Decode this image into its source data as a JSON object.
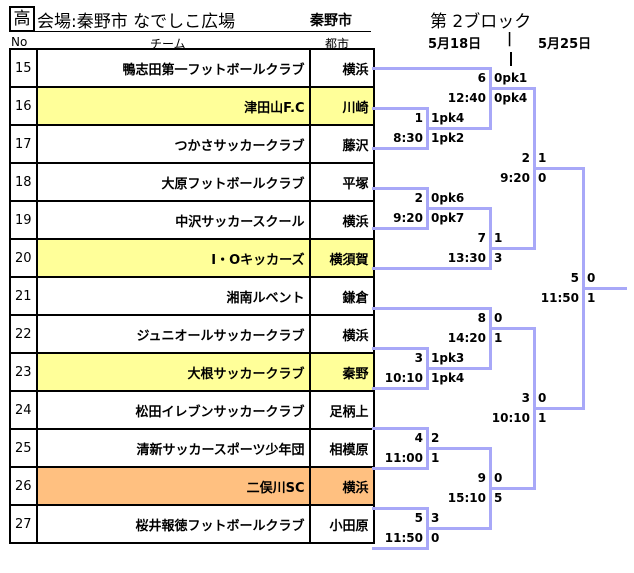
{
  "header": {
    "category": "高",
    "venue": "会場:秦野市 なでしこ広場",
    "city": "秦野市",
    "block": "第 2ブロック",
    "date1": "5月18日",
    "date2": "5月25日",
    "separator": "|"
  },
  "columns": {
    "no": "No",
    "team": "チーム",
    "city": "都市"
  },
  "colors": {
    "line": "#a8a8f8",
    "highlight_yellow": "#ffff99",
    "highlight_orange": "#ffc080"
  },
  "teams": [
    {
      "no": "15",
      "team": "鴨志田第一フットボールクラブ",
      "city": "横浜",
      "bg": "#ffffff"
    },
    {
      "no": "16",
      "team": "津田山F.C",
      "city": "川崎",
      "bg": "#ffff99"
    },
    {
      "no": "17",
      "team": "つかさサッカークラブ",
      "city": "藤沢",
      "bg": "#ffffff"
    },
    {
      "no": "18",
      "team": "大原フットボールクラブ",
      "city": "平塚",
      "bg": "#ffffff"
    },
    {
      "no": "19",
      "team": "中沢サッカースクール",
      "city": "横浜",
      "bg": "#ffffff"
    },
    {
      "no": "20",
      "team": "I・Oキッカーズ",
      "city": "横須賀",
      "bg": "#ffff99"
    },
    {
      "no": "21",
      "team": "湘南ルベント",
      "city": "鎌倉",
      "bg": "#ffffff"
    },
    {
      "no": "22",
      "team": "ジュニオールサッカークラブ",
      "city": "横浜",
      "bg": "#ffffff"
    },
    {
      "no": "23",
      "team": "大根サッカークラブ",
      "city": "秦野",
      "bg": "#ffff99"
    },
    {
      "no": "24",
      "team": "松田イレブンサッカークラブ",
      "city": "足柄上",
      "bg": "#ffffff"
    },
    {
      "no": "25",
      "team": "清新サッカースポーツ少年団",
      "city": "相模原",
      "bg": "#ffffff"
    },
    {
      "no": "26",
      "team": "二俣川SC",
      "city": "横浜",
      "bg": "#ffc080"
    },
    {
      "no": "27",
      "team": "桜井報徳フットボールクラブ",
      "city": "小田原",
      "bg": "#ffffff"
    }
  ],
  "matches": [
    {
      "id": "m1",
      "no": "1",
      "time": "8:30",
      "score_top": "1pk4",
      "score_bottom": "1pk2"
    },
    {
      "id": "m6",
      "no": "6",
      "time": "12:40",
      "score_top": "0pk1",
      "score_bottom": "0pk4"
    },
    {
      "id": "m2",
      "no": "2",
      "time": "9:20",
      "score_top": "0pk6",
      "score_bottom": "0pk7"
    },
    {
      "id": "m7",
      "no": "7",
      "time": "13:30",
      "score_top": "1",
      "score_bottom": "3"
    },
    {
      "id": "sf1",
      "no": "2",
      "time": "9:20",
      "score_top": "1",
      "score_bottom": "0"
    },
    {
      "id": "final",
      "no": "5",
      "time": "11:50",
      "score_top": "0",
      "score_bottom": "1"
    },
    {
      "id": "m8",
      "no": "8",
      "time": "14:20",
      "score_top": "0",
      "score_bottom": "1"
    },
    {
      "id": "m3",
      "no": "3",
      "time": "10:10",
      "score_top": "1pk3",
      "score_bottom": "1pk4"
    },
    {
      "id": "sf2",
      "no": "3",
      "time": "10:10",
      "score_top": "0",
      "score_bottom": "1"
    },
    {
      "id": "m4",
      "no": "4",
      "time": "11:00",
      "score_top": "2",
      "score_bottom": "1"
    },
    {
      "id": "m9",
      "no": "9",
      "time": "15:10",
      "score_top": "0",
      "score_bottom": "5"
    },
    {
      "id": "m5",
      "no": "5",
      "time": "11:50",
      "score_top": "3",
      "score_bottom": "0"
    }
  ]
}
